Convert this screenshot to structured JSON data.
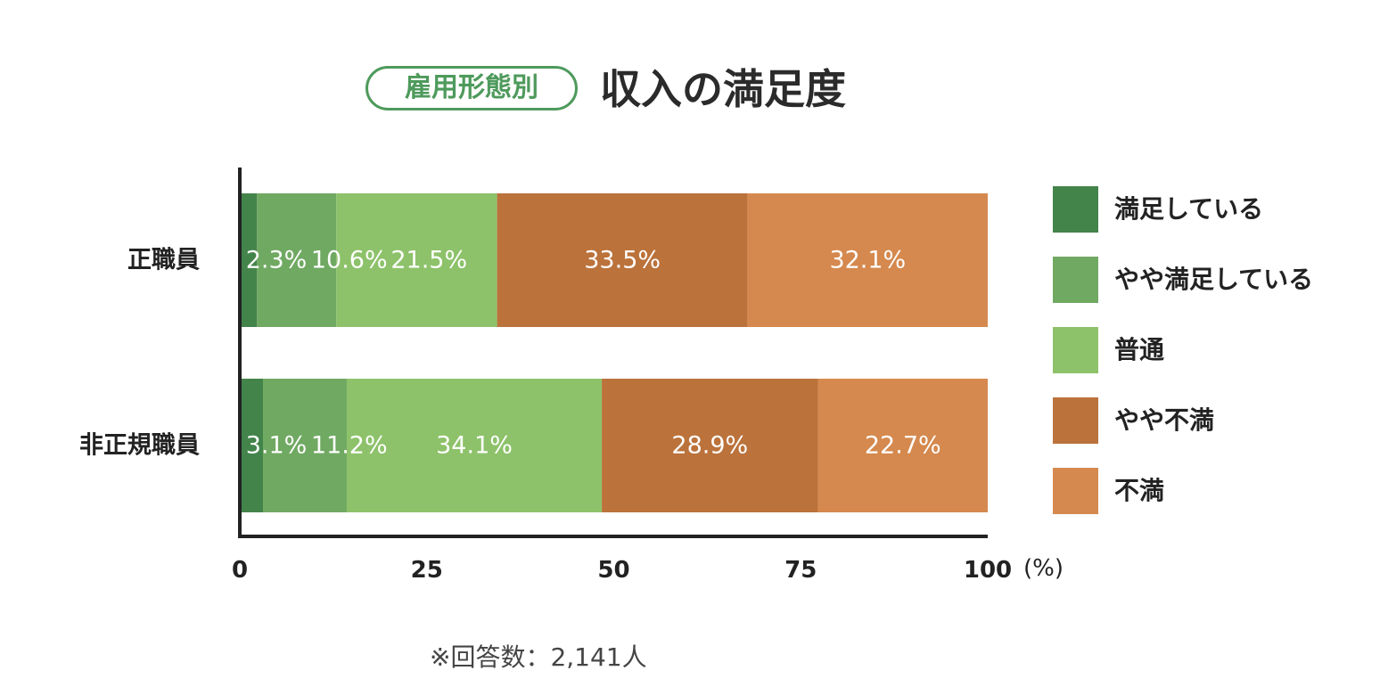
{
  "header": {
    "badge": "雇用形態別",
    "title": "収入の満足度"
  },
  "chart_data": {
    "type": "bar",
    "orientation": "horizontal",
    "stacked": true,
    "categories": [
      "正職員",
      "非正規職員"
    ],
    "series": [
      {
        "name": "満足している",
        "color": "#43844a",
        "values": [
          2.3,
          3.1
        ],
        "labels": [
          "2.3%",
          "3.1%"
        ]
      },
      {
        "name": "やや満足している",
        "color": "#70a962",
        "values": [
          10.6,
          11.2
        ],
        "labels": [
          "10.6%",
          "11.2%"
        ]
      },
      {
        "name": "普通",
        "color": "#8dc26a",
        "values": [
          21.5,
          34.1
        ],
        "labels": [
          "21.5%",
          "34.1%"
        ]
      },
      {
        "name": "やや不満",
        "color": "#bb723b",
        "values": [
          33.5,
          28.9
        ],
        "labels": [
          "33.5%",
          "28.9%"
        ]
      },
      {
        "name": "不満",
        "color": "#d5894e",
        "values": [
          32.1,
          22.7
        ],
        "labels": [
          "32.1%",
          "22.7%"
        ]
      }
    ],
    "x_ticks": [
      "0",
      "25",
      "50",
      "75",
      "100"
    ],
    "x_tick_values": [
      0,
      25,
      50,
      75,
      100
    ],
    "x_unit": "(%)",
    "xlim": [
      0,
      100
    ],
    "grid": false,
    "legend_position": "right"
  },
  "footnote": "※回答数：2,141人"
}
